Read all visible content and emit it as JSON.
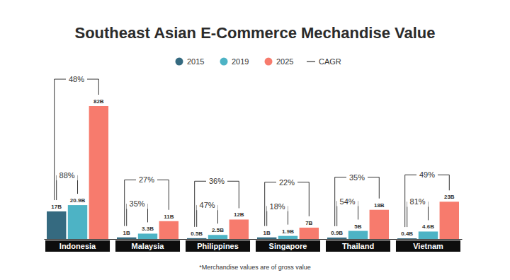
{
  "chart_data": {
    "type": "bar",
    "title": "Southeast Asian E-Commerce Mechandise Value",
    "footnote": "*Merchandise values are of gross value",
    "categories": [
      "Indonesia",
      "Malaysia",
      "Philippines",
      "Singapore",
      "Thailand",
      "Vietnam"
    ],
    "series": [
      {
        "name": "2015",
        "color": "#356a80",
        "values": [
          17,
          1,
          0.5,
          1,
          0.9,
          0.4
        ],
        "value_labels": [
          "17B",
          "1B",
          "0.5B",
          "1B",
          "0.9B",
          "0.4B"
        ]
      },
      {
        "name": "2019",
        "color": "#4db3c5",
        "values": [
          20.9,
          3.3,
          2.5,
          1.9,
          5,
          4.6
        ],
        "value_labels": [
          "20.9B",
          "3.3B",
          "2.5B",
          "1.9B",
          "5B",
          "4.6B"
        ]
      },
      {
        "name": "2025",
        "color": "#f77b6d",
        "values": [
          82,
          11,
          12,
          7,
          18,
          23
        ],
        "value_labels": [
          "82B",
          "11B",
          "12B",
          "7B",
          "18B",
          "23B"
        ]
      }
    ],
    "cagr": {
      "name": "CAGR",
      "series": [
        {
          "values": [
            88,
            35,
            47,
            18,
            54,
            81
          ],
          "value_labels": [
            "88%",
            "35%",
            "47%",
            "18%",
            "54%",
            "81%"
          ]
        },
        {
          "values": [
            48,
            27,
            36,
            22,
            35,
            49
          ],
          "value_labels": [
            "48%",
            "27%",
            "36%",
            "22%",
            "35%",
            "49%"
          ]
        }
      ]
    },
    "data_labels": true,
    "legend": "top",
    "tick_labels": "x",
    "grid": false
  }
}
